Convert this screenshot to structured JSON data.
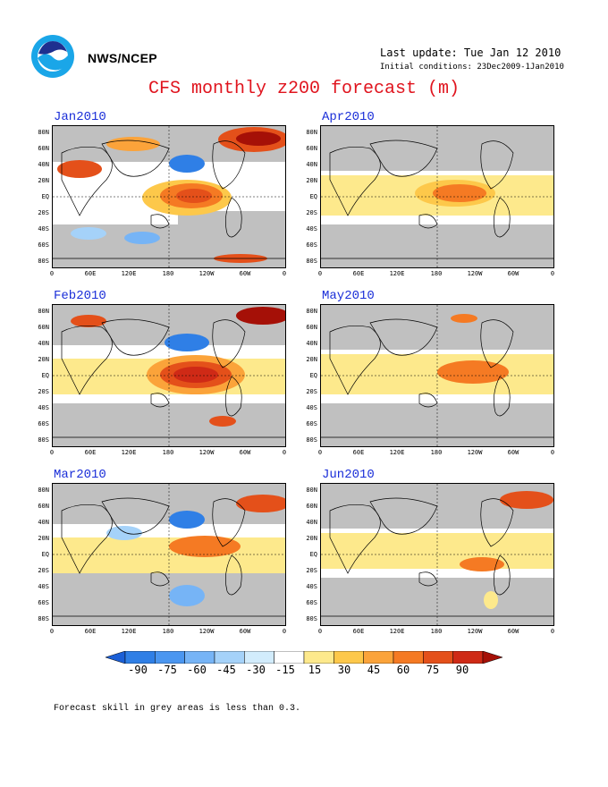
{
  "header": {
    "agency": "NWS/NCEP",
    "last_update": "Last update: Tue Jan 12 2010",
    "initial_conditions": "Initial conditions: 23Dec2009-1Jan2010",
    "title": "CFS monthly z200 forecast (m)"
  },
  "panels": [
    {
      "label": "Jan2010"
    },
    {
      "label": "Apr2010"
    },
    {
      "label": "Feb2010"
    },
    {
      "label": "May2010"
    },
    {
      "label": "Mar2010"
    },
    {
      "label": "Jun2010"
    }
  ],
  "lat_labels": [
    "80N",
    "60N",
    "40N",
    "20N",
    "EQ",
    "20S",
    "40S",
    "60S",
    "80S"
  ],
  "lon_labels": [
    "0",
    "60E",
    "120E",
    "180",
    "120W",
    "60W",
    "0"
  ],
  "colorbar": {
    "labels": [
      "-90",
      "-75",
      "-60",
      "-45",
      "-30",
      "-15",
      "15",
      "30",
      "45",
      "60",
      "75",
      "90"
    ],
    "colors": [
      "#1b5fd6",
      "#2f7fe6",
      "#4a96f0",
      "#76b4f6",
      "#a5d2f9",
      "#d2ecfc",
      "#ffffff",
      "#fde98c",
      "#fdc84a",
      "#fba33a",
      "#f57a23",
      "#e4501a",
      "#cf2a16",
      "#a51007"
    ]
  },
  "footnote": "Forecast skill in grey areas is less than 0.3.",
  "colors": {
    "title": "#e0141e",
    "panel_label": "#1a2ed8",
    "low_skill_grey": "#c0c0c0"
  }
}
